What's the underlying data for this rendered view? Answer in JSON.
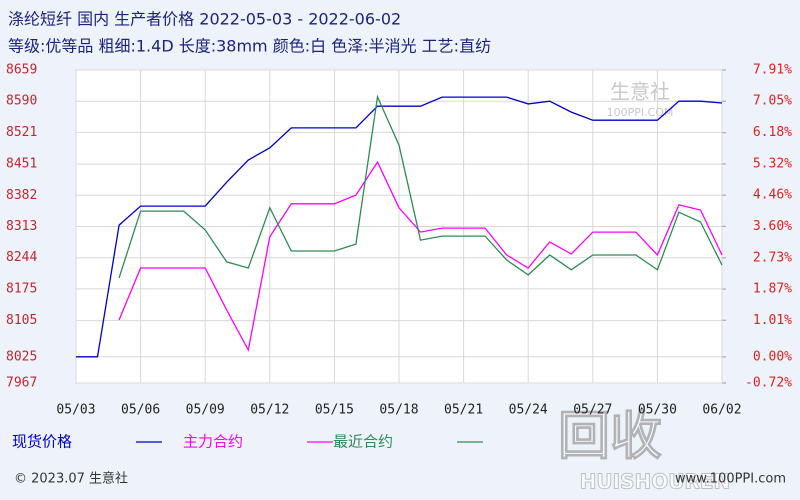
{
  "chart_data": {
    "type": "line",
    "title": "涤纶短纤 国内 生产者价格 2022-05-03 - 2022-06-02",
    "subtitle": "等级:优等品 粗细:1.4D 长度:38mm 颜色:白 色泽:半消光 工艺:直纺",
    "categories": [
      "05/03",
      null,
      null,
      "05/06",
      null,
      null,
      "05/09",
      null,
      null,
      "05/12",
      null,
      null,
      "05/15",
      null,
      null,
      "05/18",
      null,
      null,
      "05/21",
      null,
      null,
      "05/24",
      null,
      null,
      "05/27",
      null,
      null,
      "05/30",
      null,
      null,
      "06/02"
    ],
    "ylim": [
      7967,
      8659
    ],
    "yticks": [
      8659,
      8590,
      8521,
      8451,
      8382,
      8313,
      8244,
      8175,
      8105,
      8025,
      7967
    ],
    "y2lim": [
      -0.72,
      7.91
    ],
    "y2ticks": [
      {
        "value": 7.91,
        "label": "7.91%"
      },
      {
        "value": 7.05,
        "label": "7.05%"
      },
      {
        "value": 6.18,
        "label": "6.18%"
      },
      {
        "value": 5.32,
        "label": "5.32%"
      },
      {
        "value": 4.46,
        "label": "4.46%"
      },
      {
        "value": 3.6,
        "label": "3.60%"
      },
      {
        "value": 2.73,
        "label": "2.73%"
      },
      {
        "value": 1.87,
        "label": "1.87%"
      },
      {
        "value": 1.01,
        "label": "1.01%"
      },
      {
        "value": 0.0,
        "label": "0.00%"
      },
      {
        "value": -0.72,
        "label": "-0.72%"
      }
    ],
    "grid": true,
    "series": [
      {
        "name": "现货价格",
        "color": "#0000cc",
        "axis": "y",
        "values": [
          8025,
          8025,
          8316,
          8358,
          8358,
          8358,
          8358,
          8411,
          8460,
          8487,
          8531,
          8531,
          8531,
          8531,
          8579,
          8579,
          8579,
          8599,
          8599,
          8599,
          8599,
          8584,
          8590,
          8566,
          8548,
          8548,
          8548,
          8548,
          8590,
          8590,
          8586
        ]
      },
      {
        "name": "主力合约",
        "color": "#ff00ff",
        "axis": "y2",
        "values": [
          null,
          null,
          1.02,
          2.45,
          2.45,
          2.45,
          2.45,
          1.29,
          0.19,
          3.31,
          4.22,
          4.22,
          4.22,
          4.46,
          5.37,
          4.11,
          3.44,
          3.55,
          3.55,
          3.55,
          2.81,
          2.45,
          3.17,
          2.84,
          3.44,
          3.44,
          3.44,
          2.81,
          4.19,
          4.05,
          2.81
        ]
      },
      {
        "name": "最近合约",
        "color": "#2e8b57",
        "axis": "y2",
        "values": [
          null,
          null,
          2.18,
          4.02,
          4.02,
          4.02,
          3.5,
          2.62,
          2.45,
          4.11,
          2.92,
          2.92,
          2.92,
          3.11,
          7.17,
          5.84,
          3.22,
          3.33,
          3.33,
          3.33,
          2.67,
          2.26,
          2.81,
          2.4,
          2.81,
          2.81,
          2.81,
          2.4,
          3.99,
          3.72,
          2.53
        ]
      }
    ],
    "watermarks": [
      "生意社",
      "100PPI.COM",
      "回收",
      "HUISHOUREN"
    ]
  },
  "footer": {
    "copyright": "© 2023.07 生意社",
    "site": "www.100PPI.com"
  }
}
